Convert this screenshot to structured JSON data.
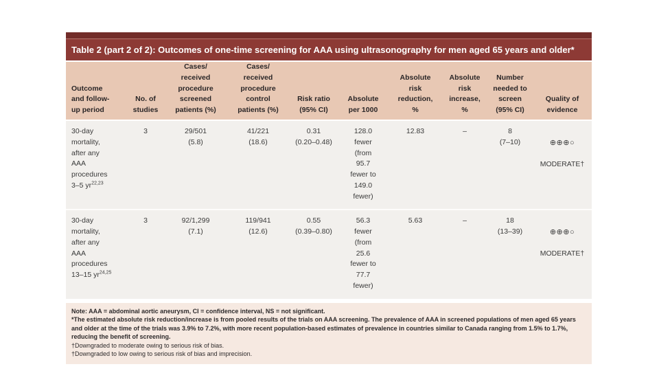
{
  "table": {
    "title": "Table 2 (part 2 of 2): Outcomes of one-time screening for AAA using ultrasonography for men aged 65 years and older*",
    "columns": {
      "outcome": "Outcome\nand follow-\nup period",
      "no_of_studies": "No. of\nstudies",
      "cases_screened": "Cases/\nreceived\nprocedure\nscreened\npatients (%)",
      "cases_control": "Cases/\nreceived\nprocedure\ncontrol\npatients (%)",
      "risk_ratio": "Risk ratio\n(95% CI)",
      "absolute_per_1000": "Absolute\nper 1000",
      "absolute_risk_reduction": "Absolute\nrisk\nreduction,\n%",
      "absolute_risk_increase": "Absolute\nrisk\nincrease,\n%",
      "number_needed_to_screen": "Number\nneeded to\nscreen\n(95% CI)",
      "quality_of_evidence": "Quality of\nevidence"
    },
    "rows": [
      {
        "outcome_main": "30-day\nmortality,\nafter any\nAAA\nprocedures\n3–5 yr",
        "outcome_ref": "22,23",
        "no_of_studies": "3",
        "cases_screened": "29/501\n(5.8)",
        "cases_control": "41/221\n(18.6)",
        "risk_ratio": "0.31\n(0.20–0.48)",
        "absolute_per_1000": "128.0\nfewer\n(from\n95.7\nfewer to\n149.0\nfewer)",
        "absolute_risk_reduction_pct": "12.83",
        "absolute_risk_increase_pct": "–",
        "number_needed_to_screen": "8\n(7–10)",
        "quality_symbols": "⊕⊕⊕○",
        "quality_label": "MODERATE†"
      },
      {
        "outcome_main": "30-day\nmortality,\nafter any\nAAA\nprocedures\n13–15 yr",
        "outcome_ref": "24,25",
        "no_of_studies": "3",
        "cases_screened": "92/1,299\n(7.1)",
        "cases_control": "119/941\n(12.6)",
        "risk_ratio": "0.55\n(0.39–0.80)",
        "absolute_per_1000": "56.3\nfewer\n(from\n25.6\nfewer to\n77.7\nfewer)",
        "absolute_risk_reduction_pct": "5.63",
        "absolute_risk_increase_pct": "–",
        "number_needed_to_screen": "18\n(13–39)",
        "quality_symbols": "⊕⊕⊕○",
        "quality_label": "MODERATE†"
      }
    ],
    "footnotes": [
      "Note: AAA = abdominal aortic aneurysm, CI = confidence interval, NS = not significant.",
      "*The estimated absolute risk reduction/increase is from pooled results of the trials on AAA screening. The prevalence of AAA in screened populations of men aged 65 years and older at the time of the trials was 3.9% to 7.2%, with more recent population-based estimates of prevalence in countries similar to Canada ranging from 1.5% to 1.7%, reducing the benefit of screening.",
      "†Downgraded to moderate owing to serious risk of bias.",
      "†Downgraded to low owing to serious risk of bias and imprecision."
    ]
  },
  "colors": {
    "top_strip": "#722d29",
    "title_bar": "#8d3a35",
    "header_bg": "#e8c8b4",
    "body_bg": "#f2f0ed",
    "footnote_bg": "#f6e9e1"
  }
}
